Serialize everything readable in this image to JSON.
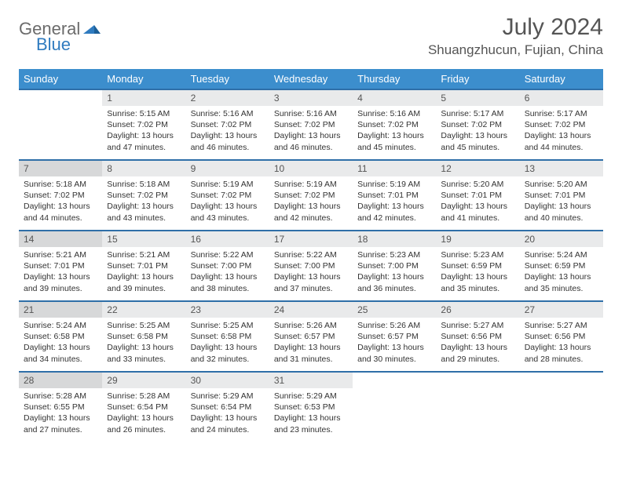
{
  "logo": {
    "text1": "General",
    "text2": "Blue"
  },
  "title": "July 2024",
  "location": "Shuangzhucun, Fujian, China",
  "colors": {
    "header_bg": "#3c8ecd",
    "header_text": "#ffffff",
    "row_border": "#2f6fa8",
    "daynum_bg": "#e9eaeb",
    "daynum_bg_shaded": "#d7d8d9",
    "text": "#333333",
    "title_text": "#555555",
    "logo_gray": "#6b6b6b",
    "logo_blue": "#2f7bbf"
  },
  "day_headers": [
    "Sunday",
    "Monday",
    "Tuesday",
    "Wednesday",
    "Thursday",
    "Friday",
    "Saturday"
  ],
  "weeks": [
    [
      null,
      {
        "n": "1",
        "sr": "Sunrise: 5:15 AM",
        "ss": "Sunset: 7:02 PM",
        "d1": "Daylight: 13 hours",
        "d2": "and 47 minutes."
      },
      {
        "n": "2",
        "sr": "Sunrise: 5:16 AM",
        "ss": "Sunset: 7:02 PM",
        "d1": "Daylight: 13 hours",
        "d2": "and 46 minutes."
      },
      {
        "n": "3",
        "sr": "Sunrise: 5:16 AM",
        "ss": "Sunset: 7:02 PM",
        "d1": "Daylight: 13 hours",
        "d2": "and 46 minutes."
      },
      {
        "n": "4",
        "sr": "Sunrise: 5:16 AM",
        "ss": "Sunset: 7:02 PM",
        "d1": "Daylight: 13 hours",
        "d2": "and 45 minutes."
      },
      {
        "n": "5",
        "sr": "Sunrise: 5:17 AM",
        "ss": "Sunset: 7:02 PM",
        "d1": "Daylight: 13 hours",
        "d2": "and 45 minutes."
      },
      {
        "n": "6",
        "sr": "Sunrise: 5:17 AM",
        "ss": "Sunset: 7:02 PM",
        "d1": "Daylight: 13 hours",
        "d2": "and 44 minutes."
      }
    ],
    [
      {
        "n": "7",
        "sr": "Sunrise: 5:18 AM",
        "ss": "Sunset: 7:02 PM",
        "d1": "Daylight: 13 hours",
        "d2": "and 44 minutes.",
        "shaded": true
      },
      {
        "n": "8",
        "sr": "Sunrise: 5:18 AM",
        "ss": "Sunset: 7:02 PM",
        "d1": "Daylight: 13 hours",
        "d2": "and 43 minutes."
      },
      {
        "n": "9",
        "sr": "Sunrise: 5:19 AM",
        "ss": "Sunset: 7:02 PM",
        "d1": "Daylight: 13 hours",
        "d2": "and 43 minutes."
      },
      {
        "n": "10",
        "sr": "Sunrise: 5:19 AM",
        "ss": "Sunset: 7:02 PM",
        "d1": "Daylight: 13 hours",
        "d2": "and 42 minutes."
      },
      {
        "n": "11",
        "sr": "Sunrise: 5:19 AM",
        "ss": "Sunset: 7:01 PM",
        "d1": "Daylight: 13 hours",
        "d2": "and 42 minutes."
      },
      {
        "n": "12",
        "sr": "Sunrise: 5:20 AM",
        "ss": "Sunset: 7:01 PM",
        "d1": "Daylight: 13 hours",
        "d2": "and 41 minutes."
      },
      {
        "n": "13",
        "sr": "Sunrise: 5:20 AM",
        "ss": "Sunset: 7:01 PM",
        "d1": "Daylight: 13 hours",
        "d2": "and 40 minutes."
      }
    ],
    [
      {
        "n": "14",
        "sr": "Sunrise: 5:21 AM",
        "ss": "Sunset: 7:01 PM",
        "d1": "Daylight: 13 hours",
        "d2": "and 39 minutes.",
        "shaded": true
      },
      {
        "n": "15",
        "sr": "Sunrise: 5:21 AM",
        "ss": "Sunset: 7:01 PM",
        "d1": "Daylight: 13 hours",
        "d2": "and 39 minutes."
      },
      {
        "n": "16",
        "sr": "Sunrise: 5:22 AM",
        "ss": "Sunset: 7:00 PM",
        "d1": "Daylight: 13 hours",
        "d2": "and 38 minutes."
      },
      {
        "n": "17",
        "sr": "Sunrise: 5:22 AM",
        "ss": "Sunset: 7:00 PM",
        "d1": "Daylight: 13 hours",
        "d2": "and 37 minutes."
      },
      {
        "n": "18",
        "sr": "Sunrise: 5:23 AM",
        "ss": "Sunset: 7:00 PM",
        "d1": "Daylight: 13 hours",
        "d2": "and 36 minutes."
      },
      {
        "n": "19",
        "sr": "Sunrise: 5:23 AM",
        "ss": "Sunset: 6:59 PM",
        "d1": "Daylight: 13 hours",
        "d2": "and 35 minutes."
      },
      {
        "n": "20",
        "sr": "Sunrise: 5:24 AM",
        "ss": "Sunset: 6:59 PM",
        "d1": "Daylight: 13 hours",
        "d2": "and 35 minutes."
      }
    ],
    [
      {
        "n": "21",
        "sr": "Sunrise: 5:24 AM",
        "ss": "Sunset: 6:58 PM",
        "d1": "Daylight: 13 hours",
        "d2": "and 34 minutes.",
        "shaded": true
      },
      {
        "n": "22",
        "sr": "Sunrise: 5:25 AM",
        "ss": "Sunset: 6:58 PM",
        "d1": "Daylight: 13 hours",
        "d2": "and 33 minutes."
      },
      {
        "n": "23",
        "sr": "Sunrise: 5:25 AM",
        "ss": "Sunset: 6:58 PM",
        "d1": "Daylight: 13 hours",
        "d2": "and 32 minutes."
      },
      {
        "n": "24",
        "sr": "Sunrise: 5:26 AM",
        "ss": "Sunset: 6:57 PM",
        "d1": "Daylight: 13 hours",
        "d2": "and 31 minutes."
      },
      {
        "n": "25",
        "sr": "Sunrise: 5:26 AM",
        "ss": "Sunset: 6:57 PM",
        "d1": "Daylight: 13 hours",
        "d2": "and 30 minutes."
      },
      {
        "n": "26",
        "sr": "Sunrise: 5:27 AM",
        "ss": "Sunset: 6:56 PM",
        "d1": "Daylight: 13 hours",
        "d2": "and 29 minutes."
      },
      {
        "n": "27",
        "sr": "Sunrise: 5:27 AM",
        "ss": "Sunset: 6:56 PM",
        "d1": "Daylight: 13 hours",
        "d2": "and 28 minutes."
      }
    ],
    [
      {
        "n": "28",
        "sr": "Sunrise: 5:28 AM",
        "ss": "Sunset: 6:55 PM",
        "d1": "Daylight: 13 hours",
        "d2": "and 27 minutes.",
        "shaded": true
      },
      {
        "n": "29",
        "sr": "Sunrise: 5:28 AM",
        "ss": "Sunset: 6:54 PM",
        "d1": "Daylight: 13 hours",
        "d2": "and 26 minutes."
      },
      {
        "n": "30",
        "sr": "Sunrise: 5:29 AM",
        "ss": "Sunset: 6:54 PM",
        "d1": "Daylight: 13 hours",
        "d2": "and 24 minutes."
      },
      {
        "n": "31",
        "sr": "Sunrise: 5:29 AM",
        "ss": "Sunset: 6:53 PM",
        "d1": "Daylight: 13 hours",
        "d2": "and 23 minutes."
      },
      null,
      null,
      null
    ]
  ]
}
